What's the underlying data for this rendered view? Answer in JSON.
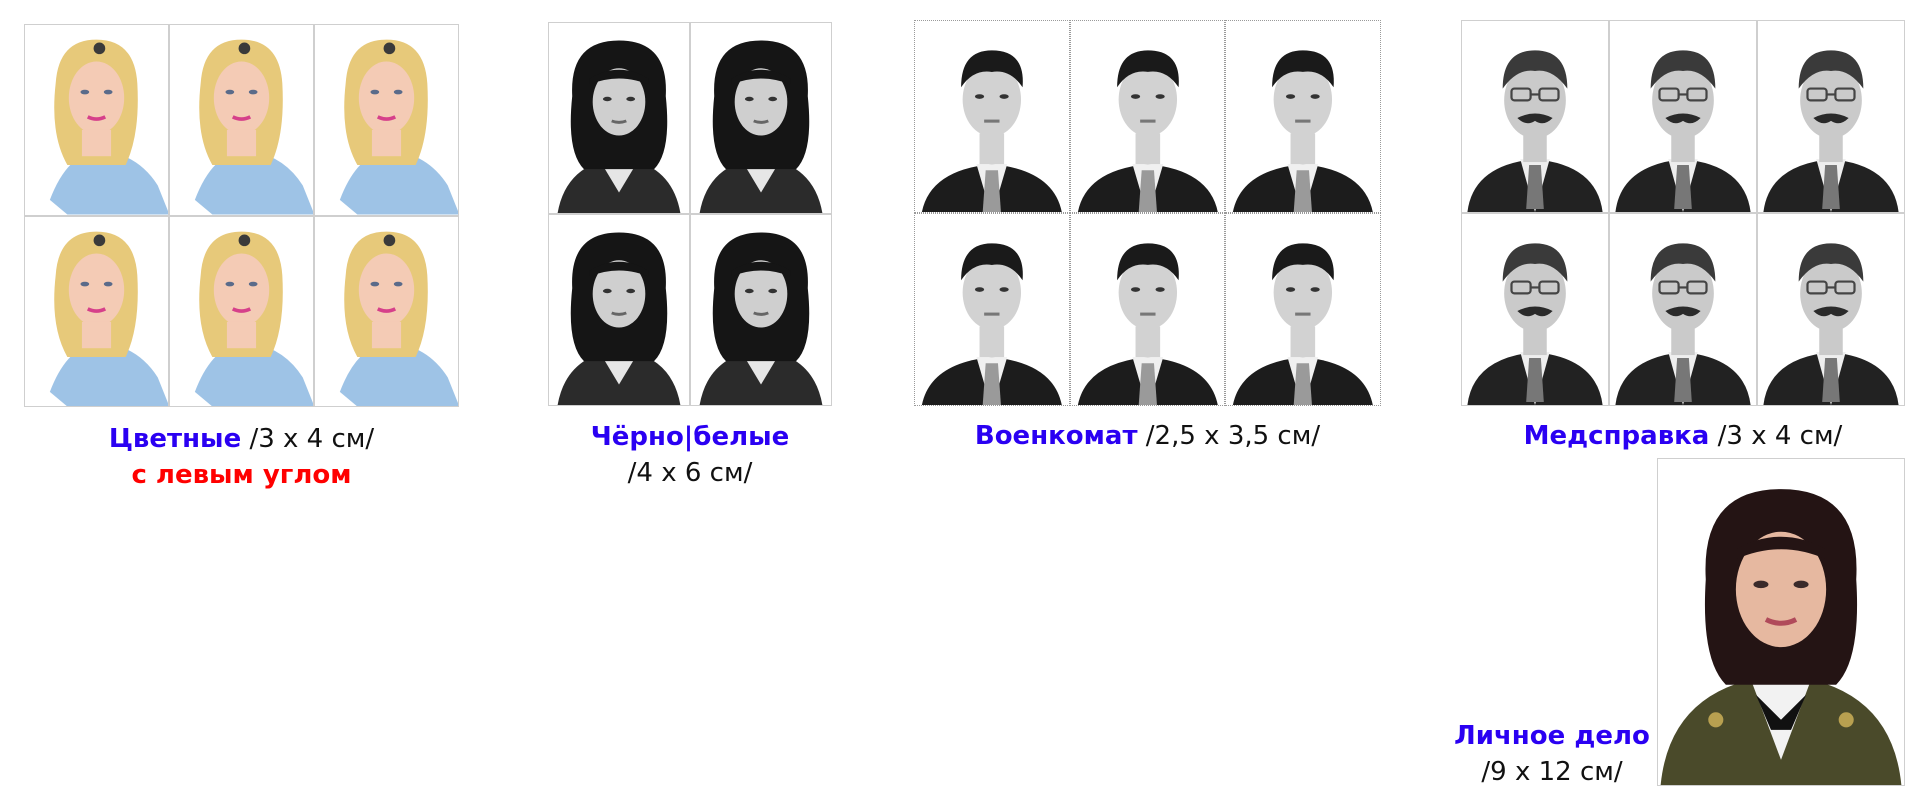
{
  "colors": {
    "accent": "#2a00f2",
    "warning": "#ff0000",
    "text": "#111111"
  },
  "photo_sets": [
    {
      "id": "color",
      "title": "Цветные",
      "size": "/3 х 4 см/",
      "note": "с левым углом",
      "style": "color-blonde-woman",
      "rows": 2,
      "cols": 3
    },
    {
      "id": "bw",
      "title": "Чёрно|белые",
      "size": "/4 х 6 см/",
      "style": "bw-dark-hair-woman",
      "rows": 2,
      "cols": 2
    },
    {
      "id": "military",
      "title": "Военкомат",
      "size": "/2,5 х 3,5 см/",
      "style": "bw-young-man-suit",
      "rows": 2,
      "cols": 3
    },
    {
      "id": "medical",
      "title": "Медсправка",
      "size": "/3 х 4 см/",
      "style": "bw-man-glasses-mustache",
      "rows": 2,
      "cols": 3
    },
    {
      "id": "personal",
      "title": "Личное дело",
      "size": "/9 х 12 см/",
      "style": "color-woman-uniform",
      "rows": 1,
      "cols": 1
    }
  ]
}
